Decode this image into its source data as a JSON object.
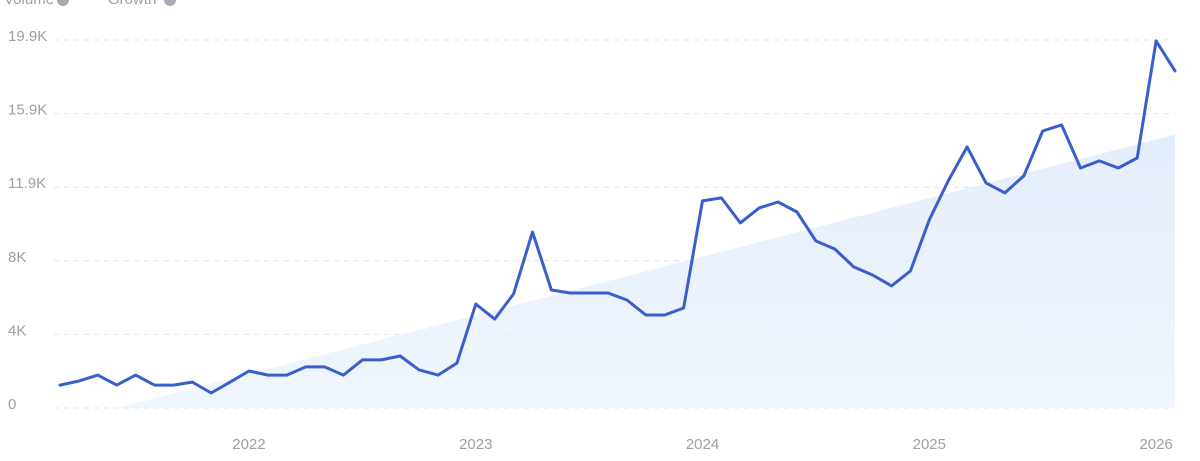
{
  "chart_data": {
    "type": "line",
    "categories": [
      null,
      null,
      null,
      null,
      null,
      null,
      null,
      null,
      null,
      null,
      "2022",
      null,
      null,
      null,
      null,
      null,
      null,
      null,
      null,
      null,
      null,
      null,
      "2023",
      null,
      null,
      null,
      null,
      null,
      null,
      null,
      null,
      null,
      null,
      null,
      "2024",
      null,
      null,
      null,
      null,
      null,
      null,
      null,
      null,
      null,
      null,
      null,
      "2025",
      null,
      null,
      null,
      null,
      null,
      null,
      null,
      null,
      null,
      null,
      null,
      "2026",
      null
    ],
    "series": [
      {
        "name": "Volume",
        "color": "#3a5fcd",
        "values": [
          1240,
          1460,
          1780,
          1240,
          1780,
          1240,
          1240,
          1400,
          810,
          1400,
          2000,
          1780,
          1780,
          2220,
          2220,
          1780,
          2600,
          2600,
          2810,
          2060,
          1780,
          2430,
          5620,
          4810,
          6170,
          9520,
          6380,
          6220,
          6220,
          6220,
          5840,
          5030,
          5030,
          5410,
          11200,
          11360,
          10010,
          10820,
          11140,
          10600,
          9030,
          8600,
          7630,
          7190,
          6600,
          7410,
          10170,
          12280,
          14120,
          12170,
          11630,
          12550,
          14980,
          15310,
          12980,
          13360,
          12980,
          13520,
          19850,
          18230
        ]
      },
      {
        "name": "Growth",
        "color": "#e4eefb",
        "values": [
          null,
          null,
          null,
          0,
          264,
          528,
          792,
          1056,
          1320,
          1584,
          1848,
          2112,
          2376,
          2640,
          2904,
          3168,
          3432,
          3696,
          3960,
          4224,
          4488,
          4752,
          5016,
          5280,
          5544,
          5808,
          6072,
          6336,
          6600,
          6864,
          7128,
          7392,
          7656,
          7920,
          8184,
          8448,
          8712,
          8976,
          9240,
          9504,
          9768,
          10032,
          10296,
          10560,
          10824,
          11088,
          11352,
          11616,
          11880,
          12144,
          12408,
          12672,
          12936,
          13200,
          13464,
          13728,
          13992,
          14256,
          14520,
          14784
        ]
      }
    ],
    "ylim": [
      0,
      19900
    ],
    "yticks": [
      0,
      {
        "value": 3980,
        "label": "4K"
      },
      {
        "value": 7960,
        "label": "8K"
      },
      {
        "value": 11940,
        "label": "11.9K"
      },
      {
        "value": 15920,
        "label": "15.9K"
      },
      {
        "value": 19900,
        "label": "19.9K"
      }
    ],
    "grid": true
  }
}
